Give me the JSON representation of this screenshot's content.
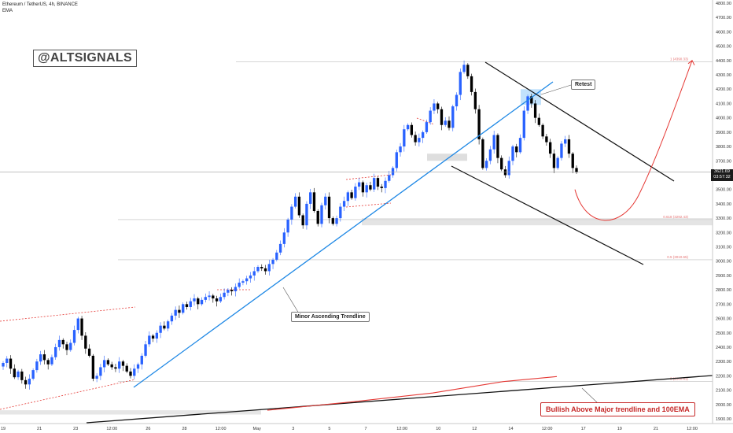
{
  "header": {
    "symbol_line": "Ethereum / TetherUS, 4h, BINANCE",
    "indicator": "EMA"
  },
  "watermark": "@ALTSIGNALS",
  "annotations": {
    "retest": "Retest",
    "minor_trendline": "Minor Ascending Trendline",
    "bullish": "Bullish Above Major trendline and 100EMA"
  },
  "price_tag": {
    "price": "3621.69",
    "countdown": "03:57:32"
  },
  "colors": {
    "bull": "#2962ff",
    "bear": "#000000",
    "trend_blue": "#1e88e5",
    "ema": "#e53935",
    "channel": "#000000"
  },
  "chart_data": {
    "type": "candlestick",
    "title": "Ethereum / TetherUS, 4h, BINANCE",
    "ylim": [
      1900,
      4800
    ],
    "y_ticks": [
      1900,
      2000,
      2100,
      2200,
      2300,
      2400,
      2500,
      2600,
      2700,
      2800,
      2900,
      3000,
      3100,
      3200,
      3300,
      3400,
      3500,
      3600,
      3700,
      3800,
      3900,
      4000,
      4100,
      4200,
      4300,
      4400,
      4500,
      4600,
      4700,
      4800
    ],
    "x_ticks": [
      "19",
      "21",
      "23",
      "12:00",
      "26",
      "28",
      "12:00",
      "May",
      "3",
      "5",
      "7",
      "12:00",
      "10",
      "12",
      "14",
      "12:00",
      "17",
      "19",
      "21",
      "12:00"
    ],
    "close": [
      2290,
      2320,
      2250,
      2190,
      2230,
      2170,
      2140,
      2180,
      2240,
      2300,
      2350,
      2310,
      2280,
      2330,
      2400,
      2450,
      2420,
      2380,
      2430,
      2520,
      2600,
      2480,
      2390,
      2340,
      2180,
      2200,
      2260,
      2310,
      2280,
      2260,
      2250,
      2300,
      2270,
      2230,
      2200,
      2250,
      2280,
      2340,
      2420,
      2480,
      2460,
      2500,
      2550,
      2530,
      2580,
      2620,
      2660,
      2640,
      2700,
      2680,
      2720,
      2740,
      2700,
      2730,
      2750,
      2760,
      2740,
      2720,
      2750,
      2780,
      2800,
      2790,
      2820,
      2850,
      2860,
      2880,
      2900,
      2930,
      2960,
      2950,
      2930,
      2980,
      3010,
      3060,
      3120,
      3200,
      3290,
      3380,
      3450,
      3320,
      3250,
      3400,
      3480,
      3350,
      3260,
      3390,
      3450,
      3300,
      3260,
      3300,
      3380,
      3420,
      3480,
      3440,
      3520,
      3550,
      3480,
      3530,
      3500,
      3580,
      3520,
      3510,
      3560,
      3600,
      3650,
      3760,
      3800,
      3920,
      3950,
      3880,
      3830,
      3860,
      3900,
      3970,
      4050,
      4100,
      4060,
      3950,
      3980,
      3930,
      4080,
      4160,
      4320,
      4370,
      4290,
      4180,
      4060,
      3850,
      3650,
      3700,
      3780,
      3880,
      3720,
      3640,
      3600,
      3700,
      3800,
      3760,
      3860,
      4050,
      4150,
      4100,
      4000,
      3950,
      3870,
      3830,
      3750,
      3650,
      3720,
      3820,
      3850,
      3750,
      3650,
      3621
    ],
    "ema_100": [
      [
        340,
        1960
      ],
      [
        450,
        2020
      ],
      [
        550,
        2080
      ],
      [
        640,
        2160
      ],
      [
        708,
        2195
      ]
    ],
    "levels": [
      {
        "price": 4390,
        "label": "1 (4390.33)"
      },
      {
        "price": 3290,
        "label": "0.618 (3292.43)"
      },
      {
        "price": 3010,
        "label": "0.5 (3010.65)"
      },
      {
        "price": 2160,
        "label": "0 (2160.61)"
      }
    ],
    "projection": {
      "from": 3500,
      "low": 3260,
      "to": 4400
    }
  }
}
